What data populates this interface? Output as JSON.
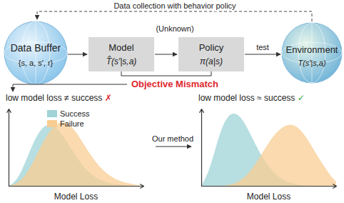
{
  "header": {
    "top_text": "Data collection with behavior policy",
    "note": "(Unknown)"
  },
  "nodes": [
    {
      "label": "Data Buffer",
      "sub": "{s, a, s′, r}"
    },
    {
      "label": "Model",
      "sub": "T̂(s′|s,a)"
    },
    {
      "label": "Policy",
      "sub": "π(a|s)"
    },
    {
      "label": "Environment",
      "sub": "T(s′|s,a)"
    }
  ],
  "edge_label": "test",
  "mismatch": "Objective Mismatch",
  "method": "Our method",
  "chart_data": [
    {
      "type": "area",
      "title": "low model loss ≠ success",
      "annotations": [
        "✗"
      ],
      "x_label": "Model Loss",
      "x": [
        0,
        0.5,
        1,
        1.5,
        2,
        2.5,
        3,
        3.5,
        4,
        4.5,
        5,
        5.5,
        6,
        6.5,
        7,
        7.5,
        8,
        8.5,
        9,
        9.5,
        10
      ],
      "series": [
        {
          "name": "Success",
          "color": "#9fd3d6",
          "values": [
            0,
            0.05,
            0.2,
            0.42,
            0.62,
            0.76,
            0.8,
            0.76,
            0.66,
            0.52,
            0.38,
            0.26,
            0.17,
            0.1,
            0.06,
            0.03,
            0.02,
            0.01,
            0,
            0,
            0
          ]
        },
        {
          "name": "Failure",
          "color": "#f8cd93",
          "values": [
            0,
            0.02,
            0.08,
            0.2,
            0.37,
            0.55,
            0.7,
            0.8,
            0.84,
            0.8,
            0.7,
            0.56,
            0.42,
            0.3,
            0.2,
            0.13,
            0.08,
            0.05,
            0.03,
            0.01,
            0
          ]
        }
      ],
      "xlim": [
        0,
        10
      ],
      "ylim": [
        0,
        1
      ],
      "tick_labels": false,
      "legend": "top-left"
    },
    {
      "type": "area",
      "title": "low model loss ≈ success",
      "annotations": [
        "✓"
      ],
      "x_label": "Model Loss",
      "x": [
        0,
        0.5,
        1,
        1.5,
        2,
        2.5,
        3,
        3.5,
        4,
        4.5,
        5,
        5.5,
        6,
        6.5,
        7,
        7.5,
        8,
        8.5,
        9,
        9.5,
        10
      ],
      "series": [
        {
          "name": "Success",
          "color": "#9fd3d6",
          "values": [
            0,
            0.15,
            0.45,
            0.75,
            0.92,
            0.95,
            0.88,
            0.72,
            0.54,
            0.38,
            0.25,
            0.15,
            0.08,
            0.04,
            0.02,
            0.01,
            0,
            0,
            0,
            0,
            0
          ]
        },
        {
          "name": "Failure",
          "color": "#f8cd93",
          "values": [
            0,
            0,
            0,
            0,
            0.01,
            0.03,
            0.08,
            0.16,
            0.28,
            0.42,
            0.56,
            0.68,
            0.76,
            0.8,
            0.78,
            0.7,
            0.57,
            0.42,
            0.28,
            0.15,
            0.05
          ]
        }
      ],
      "xlim": [
        0,
        10
      ],
      "ylim": [
        0,
        1
      ],
      "tick_labels": false
    }
  ]
}
